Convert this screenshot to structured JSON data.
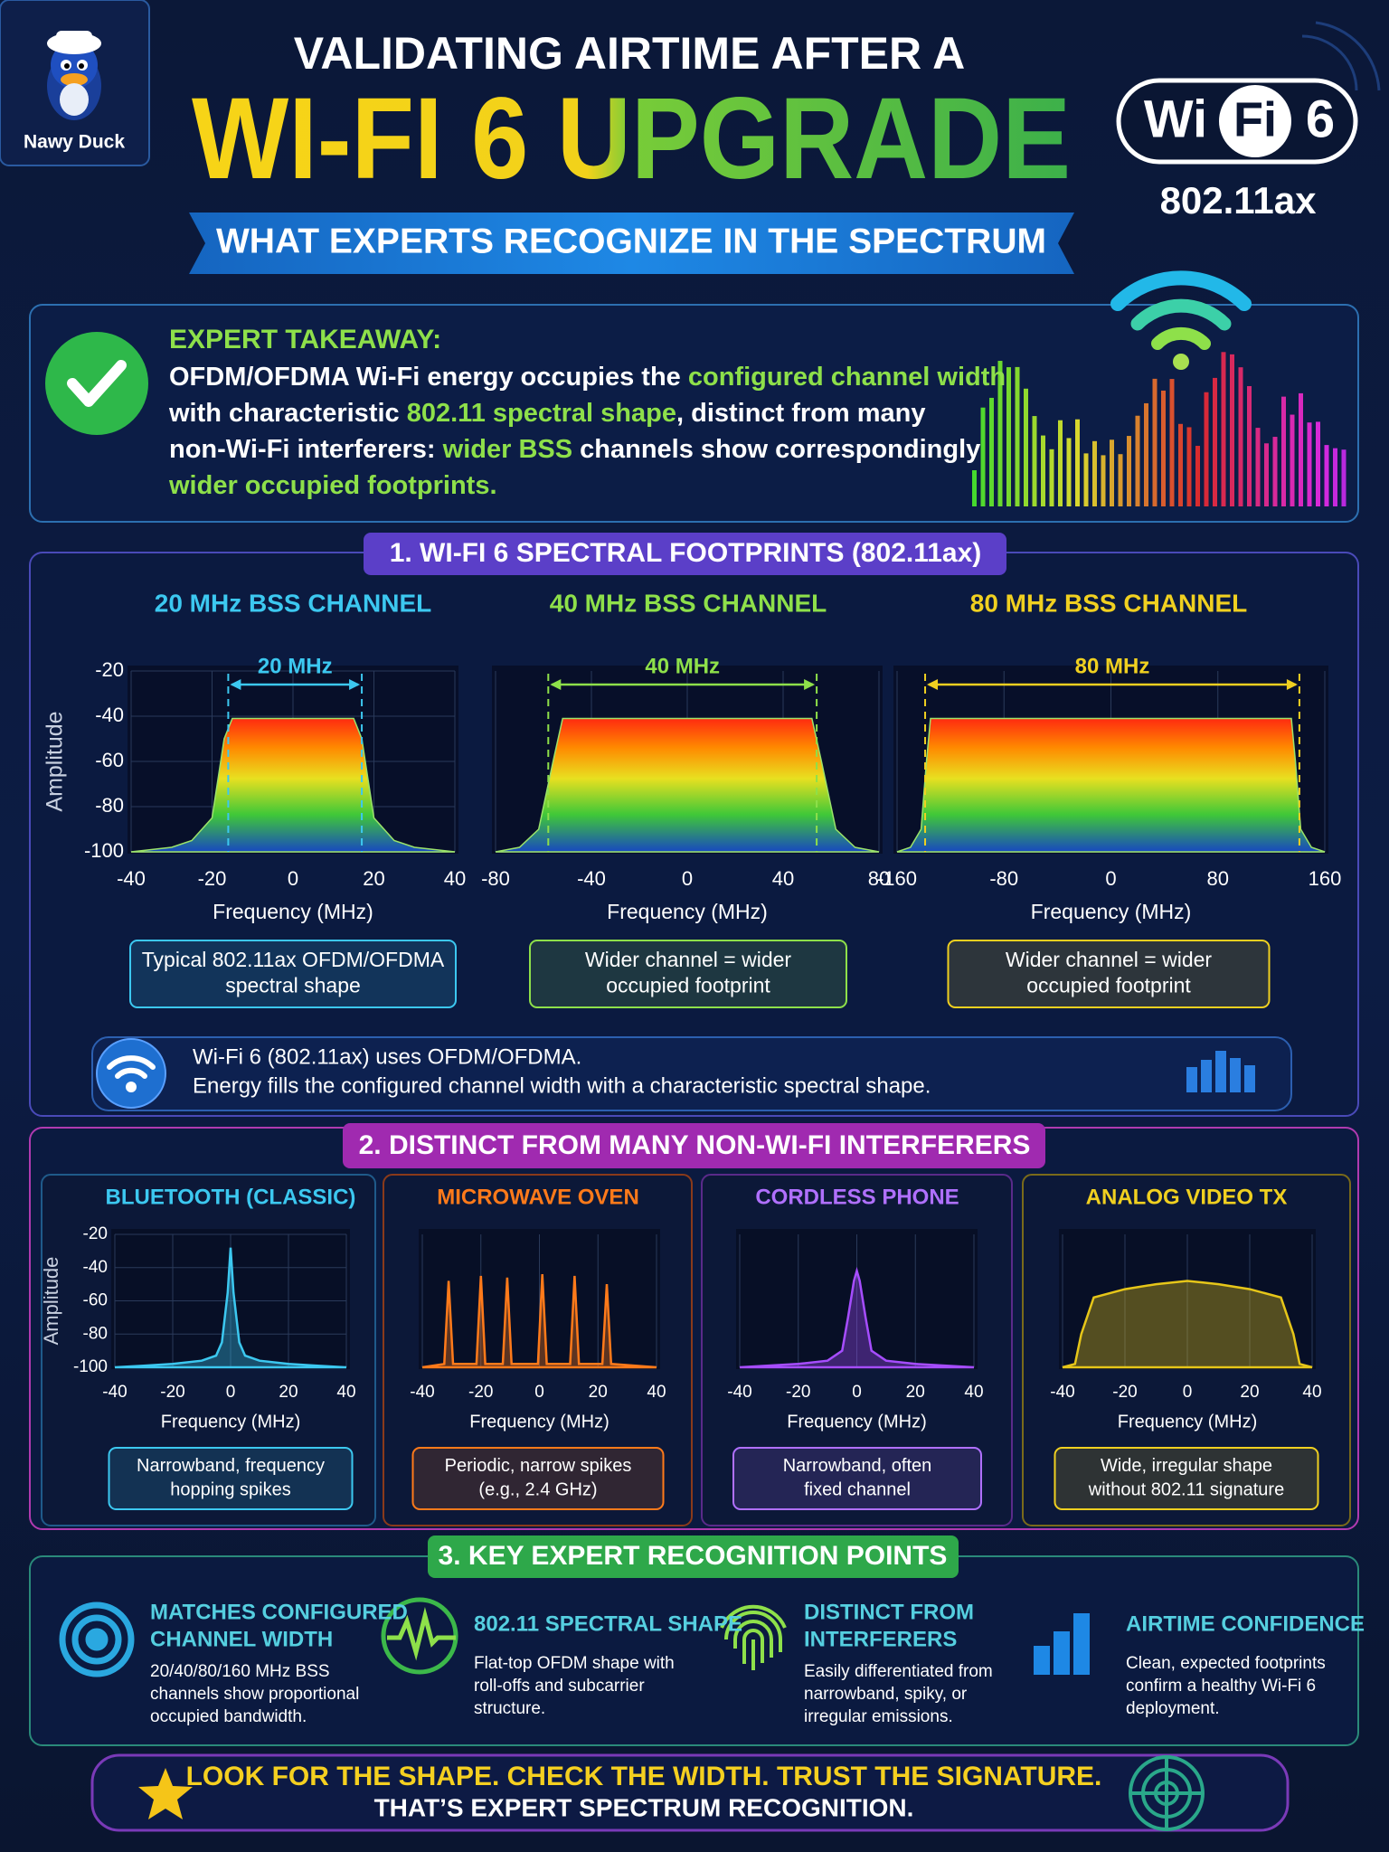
{
  "brand": "Nawy Duck",
  "header": {
    "title_line1": "VALIDATING AIRTIME AFTER A",
    "title_line2": "WI-FI 6 UPGRADE",
    "subtitle": "WHAT EXPERTS RECOGNIZE IN THE SPECTRUM",
    "badge": {
      "wi": "Wi",
      "fi": "Fi",
      "six": "6",
      "standard": "802.11ax"
    }
  },
  "takeaway": {
    "heading": "EXPERT TAKEAWAY:",
    "lines": [
      [
        {
          "text": "OFDM/OFDMA Wi-Fi energy occupies the ",
          "color": "#ffffff"
        },
        {
          "text": "configured channel width",
          "color": "#8ee04a"
        }
      ],
      [
        {
          "text": "with characteristic ",
          "color": "#ffffff"
        },
        {
          "text": "802.11 spectral shape",
          "color": "#8ee04a"
        },
        {
          "text": ", distinct from many",
          "color": "#ffffff"
        }
      ],
      [
        {
          "text": "non-Wi-Fi interferers: ",
          "color": "#ffffff"
        },
        {
          "text": "wider BSS",
          "color": "#8ee04a"
        },
        {
          "text": " channels show correspondingly",
          "color": "#ffffff"
        }
      ],
      [
        {
          "text": "wider occupied footprints.",
          "color": "#8ee04a"
        }
      ]
    ]
  },
  "section1": {
    "heading": "1. WI-FI 6 SPECTRAL FOOTPRINTS (802.11ax)",
    "info": [
      "Wi-Fi 6 (802.11ax) uses OFDM/OFDMA.",
      "Energy fills the configured channel width with a characteristic spectral shape."
    ]
  },
  "section2": {
    "heading": "2. DISTINCT FROM MANY NON-WI-FI INTERFERERS"
  },
  "section3": {
    "heading": "3. KEY EXPERT RECOGNITION POINTS",
    "points": [
      {
        "title": [
          "MATCHES CONFIGURED",
          "CHANNEL WIDTH"
        ],
        "description": [
          "20/40/80/160 MHz BSS",
          "channels show proportional",
          "occupied bandwidth."
        ]
      },
      {
        "title": [
          "802.11 SPECTRAL SHAPE"
        ],
        "description": [
          "Flat-top OFDM shape with",
          "roll-offs and subcarrier",
          "structure."
        ]
      },
      {
        "title": [
          "DISTINCT FROM",
          "INTERFERERS"
        ],
        "description": [
          "Easily differentiated from",
          "narrowband, spiky, or",
          "irregular emissions."
        ]
      },
      {
        "title": [
          "AIRTIME CONFIDENCE"
        ],
        "description": [
          "Clean, expected footprints",
          "confirm a healthy Wi-Fi 6",
          "deployment."
        ]
      }
    ]
  },
  "footer": {
    "lines": [
      "LOOK FOR THE SHAPE. CHECK THE WIDTH. TRUST THE SIGNATURE.",
      "THAT’S EXPERT SPECTRUM RECOGNITION."
    ]
  },
  "chart_data": [
    {
      "type": "spectrum",
      "title": "20 MHz BSS CHANNEL",
      "accent": "#3cc8f0",
      "color": "#9be36a",
      "x_label": "Frequency (MHz)",
      "y_label": "Amplitude",
      "x": [
        -40,
        -30,
        -25,
        -20,
        -17,
        -15,
        0,
        15,
        17,
        20,
        25,
        30,
        40
      ],
      "values": [
        -100,
        -98,
        -95,
        -85,
        -50,
        -41,
        -41,
        -41,
        -50,
        -85,
        -95,
        -98,
        -100
      ],
      "xlim": [
        -40,
        40
      ],
      "ylim": [
        -100,
        -20
      ],
      "xticks": [
        -40,
        -20,
        0,
        20,
        40
      ],
      "yticks": [
        -20,
        -40,
        -60,
        -80,
        -100
      ],
      "grid": true,
      "band": {
        "label": "20 MHz",
        "edges": [
          -16,
          17
        ]
      },
      "note": [
        "Typical 802.11ax OFDM/OFDMA",
        "spectral shape"
      ]
    },
    {
      "type": "spectrum",
      "title": "40 MHz BSS CHANNEL",
      "accent": "#8ee04a",
      "color": "#9be36a",
      "x_label": "Frequency (MHz)",
      "x": [
        -80,
        -70,
        -62,
        -56,
        -52,
        0,
        52,
        56,
        62,
        70,
        80
      ],
      "values": [
        -100,
        -98,
        -90,
        -60,
        -41,
        -41,
        -41,
        -60,
        -90,
        -98,
        -100
      ],
      "xlim": [
        -80,
        80
      ],
      "ylim": [
        -100,
        -20
      ],
      "xticks": [
        -80,
        -40,
        0,
        40,
        80
      ],
      "grid": true,
      "band": {
        "label": "40 MHz",
        "edges": [
          -58,
          54
        ]
      },
      "note": [
        "Wider channel = wider",
        "occupied footprint"
      ]
    },
    {
      "type": "spectrum",
      "title": "80 MHz BSS CHANNEL",
      "accent": "#f0d020",
      "color": "#9be36a",
      "x_label": "Frequency (MHz)",
      "x": [
        -160,
        -150,
        -142,
        -138,
        -135,
        0,
        135,
        138,
        142,
        150,
        160
      ],
      "values": [
        -100,
        -98,
        -90,
        -60,
        -41,
        -41,
        -41,
        -60,
        -90,
        -98,
        -100
      ],
      "xlim": [
        -160,
        160
      ],
      "ylim": [
        -100,
        -20
      ],
      "xticks": [
        -160,
        -80,
        0,
        80,
        160
      ],
      "grid": true,
      "band": {
        "label": "80 MHz",
        "edges": [
          -139,
          141
        ]
      },
      "note": [
        "Wider channel = wider",
        "occupied footprint"
      ]
    },
    {
      "type": "area",
      "title": "BLUETOOTH (CLASSIC)",
      "accent": "#3cc8f0",
      "color": "#3cc8f0",
      "x_label": "Frequency (MHz)",
      "y_label": "Amplitude",
      "x": [
        -40,
        -30,
        -20,
        -10,
        -5,
        -3,
        -1,
        0,
        1,
        3,
        5,
        10,
        20,
        30,
        40
      ],
      "values": [
        -100,
        -99,
        -98,
        -96,
        -93,
        -85,
        -55,
        -28,
        -55,
        -85,
        -93,
        -96,
        -98,
        -99,
        -100
      ],
      "xlim": [
        -40,
        40
      ],
      "ylim": [
        -100,
        -20
      ],
      "xticks": [
        -40,
        -20,
        0,
        20,
        40
      ],
      "yticks": [
        -20,
        -40,
        -60,
        -80,
        -100
      ],
      "grid": true,
      "note": [
        "Narrowband, frequency",
        "hopping spikes"
      ]
    },
    {
      "type": "area",
      "title": "MICROWAVE OVEN",
      "accent": "#ff7a1a",
      "color": "#ff7a1a",
      "x_label": "Frequency (MHz)",
      "x": [
        -40,
        -32.5,
        -31,
        -29.5,
        -21.5,
        -20,
        -18.5,
        -12.5,
        -11,
        -9.5,
        -0.5,
        1,
        2.5,
        10.5,
        12,
        13.5,
        21.5,
        23,
        24.5,
        40
      ],
      "values": [
        -100,
        -98,
        -48,
        -98,
        -98,
        -45,
        -98,
        -98,
        -46,
        -98,
        -98,
        -44,
        -98,
        -98,
        -45,
        -98,
        -98,
        -50,
        -98,
        -100
      ],
      "xlim": [
        -40,
        40
      ],
      "ylim": [
        -100,
        -20
      ],
      "xticks": [
        -40,
        -20,
        0,
        20,
        40
      ],
      "grid": true,
      "note": [
        "Periodic, narrow spikes",
        "(e.g., 2.4 GHz)"
      ]
    },
    {
      "type": "area",
      "title": "CORDLESS PHONE",
      "accent": "#b070ff",
      "color": "#a64dff",
      "x_label": "Frequency (MHz)",
      "x": [
        -40,
        -20,
        -10,
        -5,
        -3,
        -1,
        0,
        1,
        3,
        5,
        10,
        20,
        40
      ],
      "values": [
        -100,
        -98,
        -96,
        -90,
        -70,
        -48,
        -42,
        -48,
        -70,
        -90,
        -96,
        -98,
        -100
      ],
      "xlim": [
        -40,
        40
      ],
      "ylim": [
        -100,
        -20
      ],
      "xticks": [
        -40,
        -20,
        0,
        20,
        40
      ],
      "grid": true,
      "note": [
        "Narrowband, often",
        "fixed channel"
      ]
    },
    {
      "type": "area",
      "title": "ANALOG VIDEO TX",
      "accent": "#f0d020",
      "color": "#e6c619",
      "x_label": "Frequency (MHz)",
      "x": [
        -40,
        -36,
        -34,
        -30,
        -20,
        -10,
        0,
        5,
        10,
        20,
        30,
        34,
        36,
        40
      ],
      "values": [
        -100,
        -98,
        -80,
        -58,
        -53,
        -50,
        -48,
        -49,
        -50,
        -53,
        -58,
        -80,
        -98,
        -100
      ],
      "xlim": [
        -40,
        40
      ],
      "ylim": [
        -100,
        -20
      ],
      "xticks": [
        -40,
        -20,
        0,
        20,
        40
      ],
      "grid": true,
      "note": [
        "Wide, irregular shape",
        "without 802.11 signature"
      ]
    }
  ]
}
